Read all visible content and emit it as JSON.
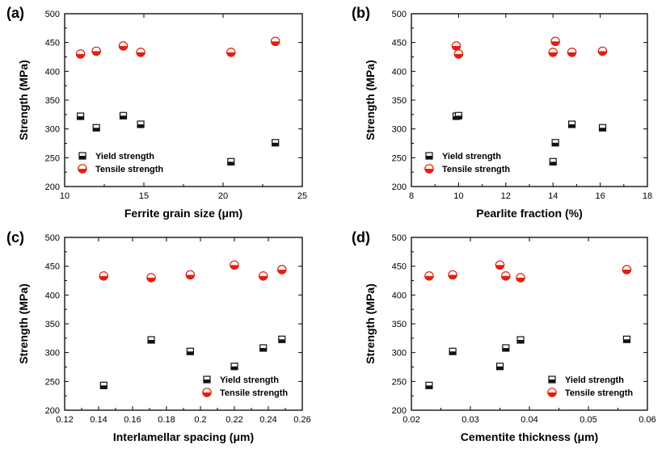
{
  "colors": {
    "yield": "#111111",
    "tensile": "#e02010",
    "axis": "#000000"
  },
  "chart_data": [
    {
      "type": "scatter",
      "panel": "(a)",
      "xlabel": "Ferrite grain size (μm)",
      "ylabel": "Strength (MPa)",
      "xlim": [
        10,
        25
      ],
      "ylim": [
        200,
        500
      ],
      "xticks": [
        10,
        15,
        20,
        25
      ],
      "yticks": [
        200,
        250,
        300,
        350,
        400,
        450,
        500
      ],
      "legend_position": "bottom-left",
      "series": [
        {
          "name": "Yield strength",
          "marker": "square-half",
          "x": [
            11.0,
            12.0,
            13.7,
            14.8,
            20.5,
            23.3
          ],
          "y": [
            322,
            302,
            323,
            308,
            243,
            276
          ]
        },
        {
          "name": "Tensile strength",
          "marker": "circle-half",
          "x": [
            11.0,
            12.0,
            13.7,
            14.8,
            20.5,
            23.3
          ],
          "y": [
            430,
            435,
            444,
            433,
            433,
            452
          ]
        }
      ]
    },
    {
      "type": "scatter",
      "panel": "(b)",
      "xlabel": "Pearlite fraction (%)",
      "ylabel": "Strength (MPa)",
      "xlim": [
        8,
        18
      ],
      "ylim": [
        200,
        500
      ],
      "xticks": [
        8,
        10,
        12,
        14,
        16,
        18
      ],
      "yticks": [
        200,
        250,
        300,
        350,
        400,
        450,
        500
      ],
      "legend_position": "bottom-left",
      "series": [
        {
          "name": "Yield strength",
          "marker": "square-half",
          "x": [
            9.9,
            10.0,
            14.0,
            14.1,
            14.8,
            16.1
          ],
          "y": [
            322,
            323,
            243,
            276,
            308,
            302
          ]
        },
        {
          "name": "Tensile strength",
          "marker": "circle-half",
          "x": [
            9.9,
            10.0,
            14.0,
            14.1,
            14.8,
            16.1
          ],
          "y": [
            444,
            430,
            433,
            452,
            433,
            435
          ]
        }
      ]
    },
    {
      "type": "scatter",
      "panel": "(c)",
      "xlabel": "Interlamellar spacing (μm)",
      "ylabel": "Strength (MPa)",
      "xlim": [
        0.12,
        0.26
      ],
      "ylim": [
        200,
        500
      ],
      "xticks": [
        0.12,
        0.14,
        0.16,
        0.18,
        0.2,
        0.22,
        0.24,
        0.26
      ],
      "yticks": [
        200,
        250,
        300,
        350,
        400,
        450,
        500
      ],
      "legend_position": "bottom-right",
      "series": [
        {
          "name": "Yield strength",
          "marker": "square-half",
          "x": [
            0.143,
            0.171,
            0.194,
            0.22,
            0.237,
            0.248
          ],
          "y": [
            243,
            322,
            302,
            276,
            308,
            323
          ]
        },
        {
          "name": "Tensile strength",
          "marker": "circle-half",
          "x": [
            0.143,
            0.171,
            0.194,
            0.22,
            0.237,
            0.248
          ],
          "y": [
            433,
            430,
            435,
            452,
            433,
            444
          ]
        }
      ]
    },
    {
      "type": "scatter",
      "panel": "(d)",
      "xlabel": "Cementite thickness (μm)",
      "ylabel": "Strength (MPa)",
      "xlim": [
        0.02,
        0.06
      ],
      "ylim": [
        200,
        500
      ],
      "xticks": [
        0.02,
        0.03,
        0.04,
        0.05,
        0.06
      ],
      "yticks": [
        200,
        250,
        300,
        350,
        400,
        450,
        500
      ],
      "legend_position": "bottom-right",
      "series": [
        {
          "name": "Yield strength",
          "marker": "square-half",
          "x": [
            0.023,
            0.027,
            0.035,
            0.036,
            0.0385,
            0.0565
          ],
          "y": [
            243,
            302,
            276,
            308,
            322,
            323
          ]
        },
        {
          "name": "Tensile strength",
          "marker": "circle-half",
          "x": [
            0.023,
            0.027,
            0.035,
            0.036,
            0.0385,
            0.0565
          ],
          "y": [
            433,
            435,
            452,
            433,
            430,
            444
          ]
        }
      ]
    }
  ]
}
